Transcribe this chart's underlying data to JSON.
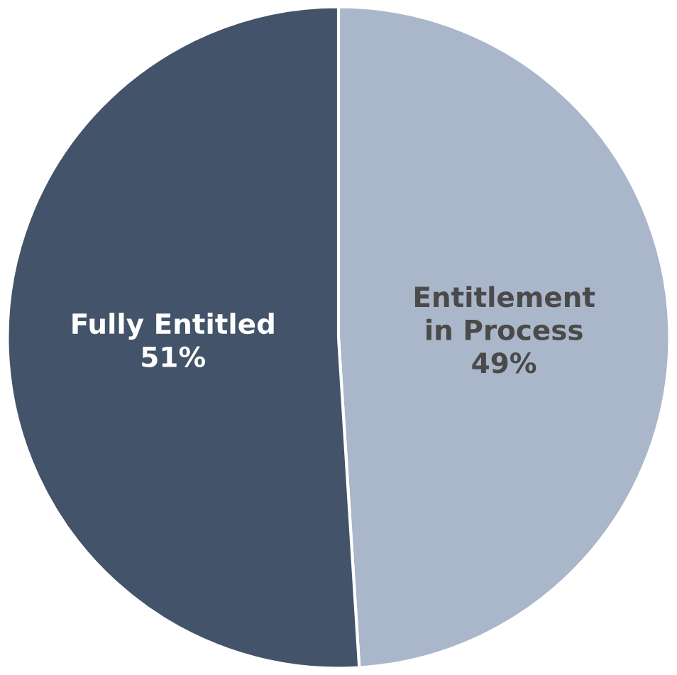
{
  "chart_data": {
    "type": "pie",
    "categories": [
      "Entitlement in Process",
      "Fully Entitled"
    ],
    "values": [
      49,
      51
    ],
    "colors": [
      "#aab6ca",
      "#435369"
    ],
    "value_labels": [
      "49%",
      "51%"
    ]
  }
}
